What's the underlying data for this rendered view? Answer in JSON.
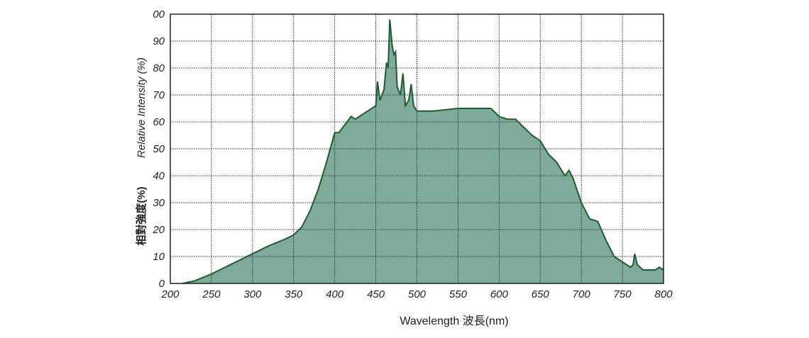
{
  "chart_data": {
    "type": "area",
    "ylabel": "Relative Intensity (%)",
    "ylabel2": "相對強度(%)",
    "xlabel": "Wavelength 波長(nm)",
    "x": [
      215,
      230,
      250,
      270,
      290,
      300,
      320,
      340,
      350,
      360,
      370,
      380,
      390,
      400,
      405,
      410,
      415,
      420,
      425,
      430,
      440,
      445,
      450,
      452,
      455,
      460,
      463,
      465,
      467,
      470,
      472,
      474,
      476,
      480,
      483,
      486,
      490,
      493,
      496,
      500,
      510,
      520,
      550,
      580,
      590,
      600,
      610,
      620,
      630,
      640,
      650,
      660,
      670,
      680,
      685,
      690,
      700,
      710,
      720,
      730,
      740,
      750,
      755,
      760,
      763,
      765,
      768,
      775,
      790,
      795,
      800
    ],
    "values": [
      0,
      1,
      3.5,
      6.5,
      9.5,
      11,
      14,
      16.5,
      18,
      21,
      27,
      35,
      45,
      56,
      56,
      58,
      60,
      62,
      61,
      62,
      64,
      65,
      66,
      75,
      68,
      72,
      82,
      80,
      98,
      88,
      85,
      86,
      73,
      70,
      78,
      66,
      68,
      74,
      66,
      64,
      64,
      64,
      65,
      65,
      65,
      62,
      61,
      61,
      58,
      55,
      53,
      48,
      45,
      40,
      42,
      39,
      30,
      24,
      23,
      16,
      10,
      8,
      7,
      6,
      7,
      11,
      7,
      5,
      5,
      6,
      5
    ],
    "fill": "#7fab9d",
    "color": "#1e5b34",
    "xlim": [
      200,
      800
    ],
    "xticks": [
      200,
      250,
      300,
      350,
      400,
      450,
      500,
      550,
      600,
      650,
      700,
      750,
      800
    ],
    "ylim": [
      0,
      100
    ],
    "yticks": [
      0,
      10,
      20,
      30,
      40,
      50,
      60,
      70,
      80,
      90,
      {
        "value": 100,
        "label": "00"
      }
    ],
    "grid": true
  }
}
